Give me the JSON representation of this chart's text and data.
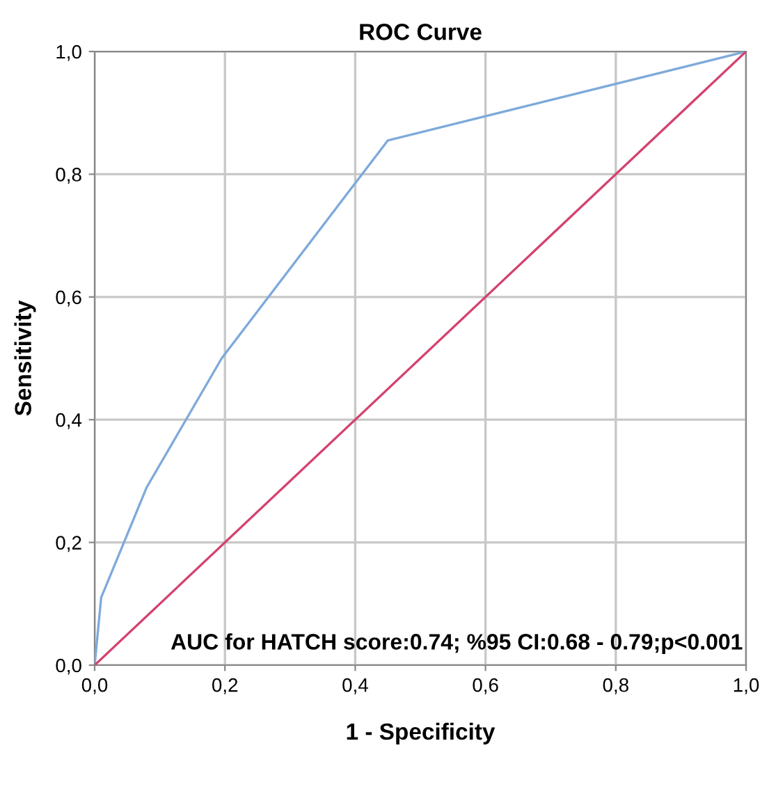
{
  "chart_data": {
    "type": "line",
    "title": "ROC Curve",
    "xlabel": "1 - Specificity",
    "ylabel": "Sensitivity",
    "series": [
      {
        "x": [
          0,
          0.01,
          0.08,
          0.195,
          0.45,
          1.0
        ],
        "values": [
          0,
          0.11,
          0.29,
          0.5,
          0.855,
          1.0
        ],
        "color": "#7eaadb"
      },
      {
        "x": [
          0,
          1.0
        ],
        "values": [
          0,
          1.0
        ],
        "color": "#d4426e"
      }
    ],
    "xlim": [
      0,
      1
    ],
    "ylim": [
      0,
      1
    ],
    "xticks": [
      {
        "value": 0,
        "label": "0,0"
      },
      {
        "value": 0.2,
        "label": "0,2"
      },
      {
        "value": 0.4,
        "label": "0,4"
      },
      {
        "value": 0.6,
        "label": "0,6"
      },
      {
        "value": 0.8,
        "label": "0,8"
      },
      {
        "value": 1.0,
        "label": "1,0"
      }
    ],
    "yticks": [
      {
        "value": 0,
        "label": "0,0"
      },
      {
        "value": 0.2,
        "label": "0,2"
      },
      {
        "value": 0.4,
        "label": "0,4"
      },
      {
        "value": 0.6,
        "label": "0,6"
      },
      {
        "value": 0.8,
        "label": "0,8"
      },
      {
        "value": 1.0,
        "label": "1,0"
      }
    ],
    "grid": true,
    "legend": false,
    "annotations": [
      "AUC for HATCH score:0.74; %95 CI:0.68 - 0.79;p<0.001"
    ]
  }
}
